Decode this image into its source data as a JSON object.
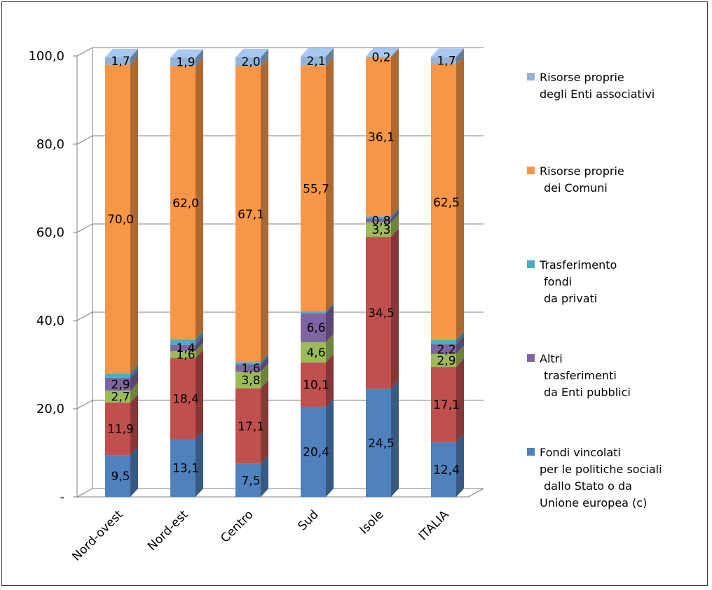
{
  "chart_data": {
    "type": "bar",
    "stacked": true,
    "title": "",
    "xlabel": "",
    "ylabel": "",
    "ylim": [
      0,
      100
    ],
    "y_ticks": [
      "-",
      "20,0",
      "40,0",
      "60,0",
      "80,0",
      "100,0"
    ],
    "grid": true,
    "legend_position": "right",
    "categories": [
      "Nord-ovest",
      "Nord-est",
      "Centro",
      "Sud",
      "Isole",
      "ITALIA"
    ],
    "series": [
      {
        "name": "Fondi vincolati\nper le politiche sociali\ndallo Stato o da\nUnione europea (c)",
        "color": "#4F81BD",
        "values": [
          9.5,
          13.1,
          7.5,
          20.4,
          24.5,
          12.4
        ],
        "labels": [
          "9,5",
          "13,1",
          "7,5",
          "20,4",
          "24,5",
          "12,4"
        ]
      },
      {
        "name": "",
        "color": "#C0504D",
        "values": [
          11.9,
          18.4,
          17.1,
          10.1,
          34.5,
          17.1
        ],
        "labels": [
          "11,9",
          "18,4",
          "17,1",
          "10,1",
          "34,5",
          "17,1"
        ]
      },
      {
        "name": "",
        "color": "#9BBB59",
        "values": [
          2.7,
          1.6,
          3.8,
          4.6,
          3.3,
          2.9
        ],
        "labels": [
          "2,7",
          "1,6",
          "3,8",
          "4,6",
          "3,3",
          "2,9"
        ]
      },
      {
        "name": "Altri\ntrasferimenti\nda Enti pubblici",
        "color": "#8064A2",
        "values": [
          2.9,
          1.4,
          1.6,
          6.6,
          0.8,
          2.2
        ],
        "labels": [
          "2,9",
          "1,4",
          "1,6",
          "6,6",
          "0,8",
          "2,2"
        ]
      },
      {
        "name": "Trasferimento\nfondi\nda privati",
        "color": "#4BACC6",
        "values": [
          1.0,
          1.2,
          0.6,
          0.4,
          0.5,
          1.0
        ],
        "labels": [
          "",
          "",
          "",
          "",
          "",
          ""
        ]
      },
      {
        "name": "Risorse proprie\ndei Comuni",
        "color": "#F79646",
        "values": [
          70.0,
          62.0,
          67.1,
          55.7,
          36.1,
          62.5
        ],
        "labels": [
          "70,0",
          "62,0",
          "67,1",
          "55,7",
          "36,1",
          "62,5"
        ]
      },
      {
        "name": "Risorse proprie\ndegli Enti associativi",
        "color": "#95B3D7",
        "values": [
          1.7,
          1.9,
          2.0,
          2.1,
          0.2,
          1.7
        ],
        "labels": [
          "1,7",
          "1,9",
          "2,0",
          "2,1",
          "0,2",
          "1,7"
        ]
      }
    ],
    "legend_order": [
      6,
      5,
      4,
      3,
      0
    ]
  }
}
